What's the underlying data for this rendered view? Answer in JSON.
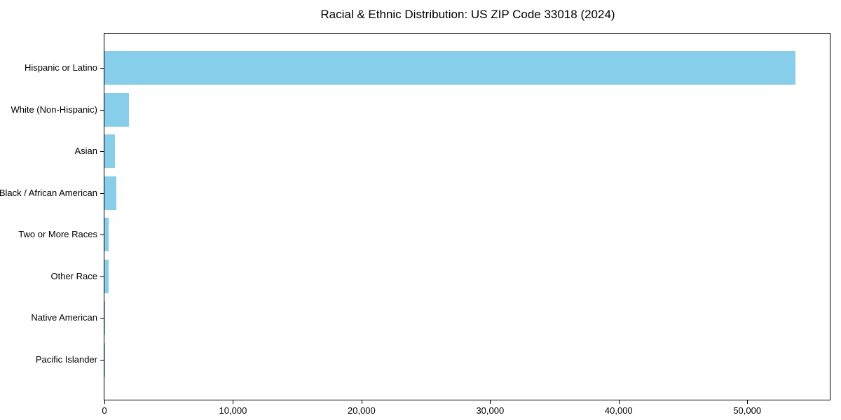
{
  "title": "Racial & Ethnic Distribution: US ZIP Code 33018 (2024)",
  "chart_data": {
    "type": "bar",
    "orientation": "horizontal",
    "title": "Racial & Ethnic Distribution: US ZIP Code 33018 (2024)",
    "xlabel": "",
    "ylabel": "",
    "categories": [
      "Hispanic or Latino",
      "White (Non-Hispanic)",
      "Asian",
      "Black / African American",
      "Two or More Races",
      "Other Race",
      "Native American",
      "Pacific Islander"
    ],
    "values": [
      53750,
      1900,
      840,
      900,
      320,
      340,
      30,
      15
    ],
    "xlim": [
      0,
      56420
    ],
    "x_ticks": [
      0,
      10000,
      20000,
      30000,
      40000,
      50000
    ],
    "x_tick_labels": [
      "0",
      "10,000",
      "20,000",
      "30,000",
      "40,000",
      "50,000"
    ],
    "grid": false,
    "legend": null,
    "bar_color": "#87CEEB",
    "axis_color": "#000000",
    "background_color": "#ffffff"
  }
}
